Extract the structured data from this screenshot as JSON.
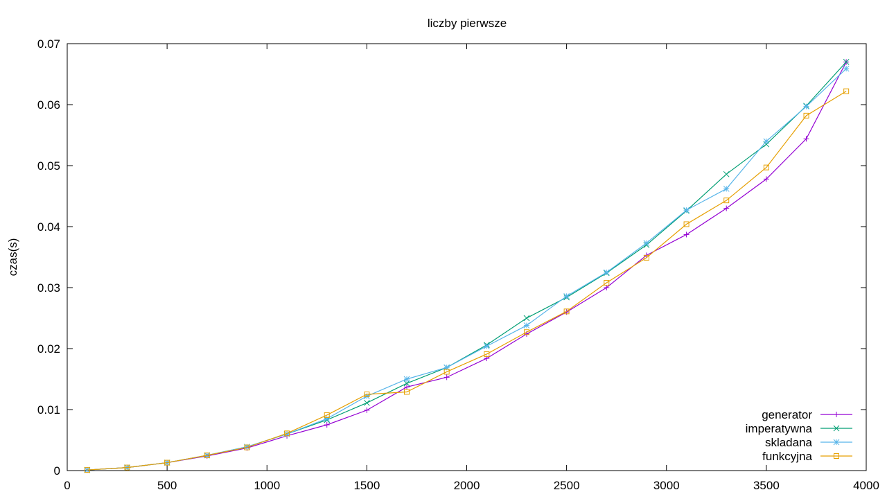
{
  "chart_data": {
    "type": "line",
    "title": "liczby pierwsze",
    "xlabel": "",
    "ylabel": "czas(s)",
    "xlim": [
      0,
      4000
    ],
    "ylim": [
      0,
      0.07
    ],
    "xticks": [
      0,
      500,
      1000,
      1500,
      2000,
      2500,
      3000,
      3500,
      4000
    ],
    "xtick_labels": [
      "0",
      "500",
      "1000",
      "1500",
      "2000",
      "2500",
      "3000",
      "3500",
      "4000"
    ],
    "yticks": [
      0,
      0.01,
      0.02,
      0.03,
      0.04,
      0.05,
      0.06,
      0.07
    ],
    "ytick_labels": [
      "0",
      "0.01",
      "0.02",
      "0.03",
      "0.04",
      "0.05",
      "0.06",
      "0.07"
    ],
    "grid": false,
    "legend_position": "bottom-right",
    "x": [
      100,
      300,
      500,
      700,
      900,
      1100,
      1300,
      1500,
      1700,
      1900,
      2100,
      2300,
      2500,
      2700,
      2900,
      3100,
      3300,
      3500,
      3700,
      3900
    ],
    "series": [
      {
        "name": "generator",
        "color": "#9400d3",
        "marker": "plus",
        "values": [
          0.0001,
          0.0005,
          0.0013,
          0.0024,
          0.0037,
          0.0057,
          0.0075,
          0.0099,
          0.0137,
          0.0153,
          0.0184,
          0.0224,
          0.026,
          0.03,
          0.0353,
          0.0387,
          0.043,
          0.0478,
          0.0544,
          0.067
        ]
      },
      {
        "name": "imperatywna",
        "color": "#009e73",
        "marker": "cross",
        "values": [
          0.0001,
          0.0005,
          0.0013,
          0.0025,
          0.0039,
          0.006,
          0.0083,
          0.0111,
          0.0143,
          0.0169,
          0.0206,
          0.025,
          0.0284,
          0.0324,
          0.037,
          0.0426,
          0.0486,
          0.0535,
          0.0598,
          0.067
        ]
      },
      {
        "name": "skladana",
        "color": "#56b4e9",
        "marker": "star",
        "values": [
          0.0001,
          0.0005,
          0.0013,
          0.0025,
          0.0039,
          0.006,
          0.0085,
          0.0122,
          0.015,
          0.0169,
          0.0204,
          0.0238,
          0.0286,
          0.0325,
          0.0373,
          0.0427,
          0.0462,
          0.054,
          0.0597,
          0.0659
        ]
      },
      {
        "name": "funkcyjna",
        "color": "#e69f00",
        "marker": "square",
        "values": [
          0.0001,
          0.0005,
          0.0013,
          0.0025,
          0.0038,
          0.0061,
          0.0091,
          0.0125,
          0.0129,
          0.0162,
          0.0191,
          0.0227,
          0.0261,
          0.0308,
          0.0349,
          0.0404,
          0.0443,
          0.0497,
          0.0582,
          0.0622
        ]
      }
    ]
  }
}
